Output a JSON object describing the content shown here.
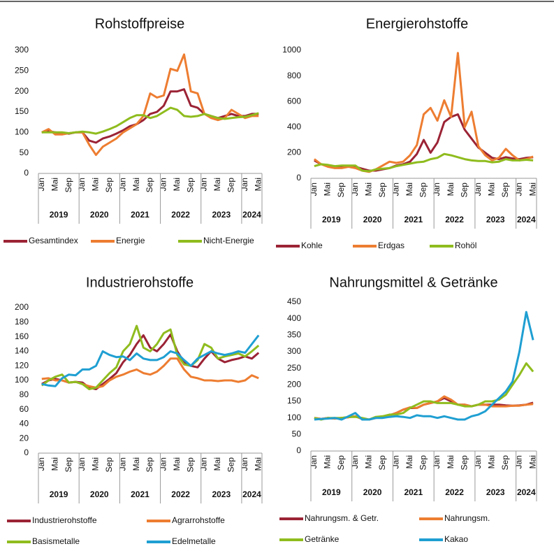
{
  "chart_data": [
    {
      "type": "line",
      "title": "Rohstoffpreise",
      "categories": [
        "Jan",
        null,
        "Mai",
        null,
        "Sep",
        null,
        "Jan",
        null,
        "Mai",
        null,
        "Sep",
        null,
        "Jan",
        null,
        "Mai",
        null,
        "Sep",
        null,
        "Jan",
        null,
        "Mai",
        null,
        "Sep",
        null,
        "Jan",
        null,
        "Mai",
        null,
        "Sep",
        null,
        "Jan",
        null,
        "Mai"
      ],
      "years": [
        "2019",
        "2020",
        "2021",
        "2022",
        "2023",
        "2024"
      ],
      "ylim": [
        0,
        300
      ],
      "yticks": [
        0,
        50,
        100,
        150,
        200,
        250,
        300
      ],
      "series": [
        {
          "name": "Gesamtindex",
          "color": "#9b2335",
          "values": [
            100,
            103,
            100,
            98,
            97,
            100,
            100,
            80,
            75,
            85,
            90,
            97,
            105,
            115,
            120,
            130,
            145,
            150,
            165,
            200,
            200,
            205,
            165,
            160,
            145,
            140,
            135,
            140,
            145,
            140,
            140,
            145,
            145
          ]
        },
        {
          "name": "Energie",
          "color": "#ed7d31",
          "values": [
            100,
            108,
            95,
            95,
            98,
            100,
            100,
            70,
            45,
            65,
            75,
            85,
            100,
            110,
            120,
            140,
            195,
            185,
            190,
            255,
            250,
            290,
            200,
            195,
            145,
            135,
            130,
            135,
            155,
            145,
            135,
            140,
            140
          ]
        },
        {
          "name": "Nicht-Energie",
          "color": "#8fbc1e",
          "values": [
            100,
            100,
            100,
            100,
            98,
            100,
            102,
            100,
            97,
            102,
            108,
            115,
            125,
            135,
            142,
            142,
            135,
            140,
            150,
            160,
            155,
            140,
            138,
            140,
            145,
            140,
            135,
            133,
            135,
            137,
            138,
            142,
            147
          ]
        }
      ]
    },
    {
      "type": "line",
      "title": "Energierohstoffe",
      "categories": [
        "Jan",
        null,
        "Mai",
        null,
        "Sep",
        null,
        "Jan",
        null,
        "Mai",
        null,
        "Sep",
        null,
        "Jan",
        null,
        "Mai",
        null,
        "Sep",
        null,
        "Jan",
        null,
        "Mai",
        null,
        "Sep",
        null,
        "Jan",
        null,
        "Mai",
        null,
        "Sep",
        null,
        "Jan",
        null,
        "Mai"
      ],
      "years": [
        "2019",
        "2020",
        "2021",
        "2022",
        "2023",
        "2024"
      ],
      "ylim": [
        0,
        1000
      ],
      "yticks": [
        0,
        200,
        400,
        600,
        800,
        1000
      ],
      "series": [
        {
          "name": "Kohle",
          "color": "#9b2335",
          "values": [
            140,
            110,
            100,
            85,
            85,
            95,
            90,
            75,
            60,
            60,
            70,
            80,
            100,
            110,
            130,
            190,
            300,
            200,
            280,
            440,
            480,
            500,
            380,
            310,
            240,
            200,
            160,
            150,
            165,
            155,
            150,
            160,
            165
          ]
        },
        {
          "name": "Erdgas",
          "color": "#ed7d31",
          "values": [
            150,
            110,
            90,
            80,
            80,
            90,
            80,
            60,
            50,
            70,
            100,
            130,
            120,
            130,
            180,
            260,
            500,
            550,
            450,
            610,
            480,
            980,
            400,
            520,
            250,
            180,
            140,
            160,
            230,
            180,
            140,
            150,
            170
          ]
        },
        {
          "name": "Rohöl",
          "color": "#8fbc1e",
          "values": [
            95,
            110,
            105,
            95,
            100,
            100,
            100,
            60,
            55,
            70,
            75,
            80,
            95,
            105,
            115,
            125,
            130,
            150,
            160,
            190,
            180,
            165,
            150,
            140,
            135,
            135,
            125,
            130,
            150,
            140,
            140,
            145,
            140
          ]
        }
      ]
    },
    {
      "type": "line",
      "title": "Industrierohstoffe",
      "categories": [
        "Jan",
        null,
        "Mai",
        null,
        "Sep",
        null,
        "Jan",
        null,
        "Mai",
        null,
        "Sep",
        null,
        "Jan",
        null,
        "Mai",
        null,
        "Sep",
        null,
        "Jan",
        null,
        "Mai",
        null,
        "Sep",
        null,
        "Jan",
        null,
        "Mai",
        null,
        "Sep",
        null,
        "Jan",
        null,
        "Mai"
      ],
      "years": [
        "2019",
        "2020",
        "2021",
        "2022",
        "2023",
        "2024"
      ],
      "ylim": [
        0,
        200
      ],
      "yticks": [
        0,
        20,
        40,
        60,
        80,
        100,
        120,
        140,
        160,
        180,
        200
      ],
      "series": [
        {
          "name": "Industrierohstoffe",
          "color": "#9b2335",
          "values": [
            95,
            100,
            102,
            100,
            97,
            98,
            97,
            90,
            88,
            95,
            102,
            110,
            125,
            135,
            150,
            162,
            145,
            140,
            150,
            163,
            140,
            125,
            120,
            118,
            130,
            140,
            130,
            125,
            128,
            130,
            133,
            130,
            138
          ]
        },
        {
          "name": "Agrarrohstoffe",
          "color": "#ed7d31",
          "values": [
            102,
            103,
            100,
            100,
            97,
            98,
            95,
            92,
            90,
            92,
            100,
            105,
            108,
            112,
            115,
            110,
            108,
            112,
            120,
            130,
            130,
            115,
            105,
            103,
            100,
            100,
            99,
            100,
            100,
            98,
            100,
            107,
            103
          ]
        },
        {
          "name": "Basismetalle",
          "color": "#8fbc1e",
          "values": [
            93,
            100,
            105,
            108,
            97,
            98,
            95,
            88,
            90,
            100,
            110,
            118,
            140,
            150,
            175,
            145,
            140,
            150,
            165,
            170,
            135,
            122,
            120,
            128,
            150,
            145,
            130,
            133,
            135,
            137,
            133,
            140,
            148
          ]
        },
        {
          "name": "Edelmetalle",
          "color": "#1f9fd2",
          "values": [
            95,
            93,
            92,
            103,
            108,
            107,
            115,
            115,
            120,
            140,
            135,
            132,
            133,
            128,
            137,
            130,
            128,
            128,
            132,
            140,
            137,
            128,
            120,
            130,
            135,
            140,
            137,
            135,
            137,
            140,
            138,
            150,
            162
          ]
        }
      ]
    },
    {
      "type": "line",
      "title": "Nahrungsmittel & Getränke",
      "categories": [
        "Jan",
        null,
        "Mai",
        null,
        "Sep",
        null,
        "Jan",
        null,
        "Mai",
        null,
        "Sep",
        null,
        "Jan",
        null,
        "Mai",
        null,
        "Sep",
        null,
        "Jan",
        null,
        "Mai",
        null,
        "Sep",
        null,
        "Jan",
        null,
        "Mai",
        null,
        "Sep",
        null,
        "Jan",
        null,
        "Mai"
      ],
      "years": [
        "2019",
        "2020",
        "2021",
        "2022",
        "2023",
        "2024"
      ],
      "ylim": [
        0,
        450
      ],
      "yticks": [
        0,
        50,
        100,
        150,
        200,
        250,
        300,
        350,
        400,
        450
      ],
      "series": [
        {
          "name": "Nahrungsm. & Getr.",
          "color": "#9b2335",
          "values": [
            100,
            97,
            100,
            98,
            100,
            102,
            105,
            97,
            95,
            100,
            103,
            108,
            115,
            125,
            130,
            130,
            140,
            145,
            150,
            160,
            150,
            140,
            140,
            135,
            140,
            140,
            140,
            140,
            138,
            137,
            138,
            140,
            146
          ]
        },
        {
          "name": "Nahrungsm.",
          "color": "#ed7d31",
          "values": [
            100,
            97,
            100,
            98,
            100,
            102,
            105,
            97,
            95,
            100,
            103,
            108,
            115,
            125,
            132,
            130,
            140,
            145,
            150,
            165,
            155,
            140,
            140,
            135,
            140,
            140,
            135,
            135,
            135,
            137,
            137,
            140,
            142
          ]
        },
        {
          "name": "Getränke",
          "color": "#8fbc1e",
          "values": [
            100,
            95,
            100,
            100,
            100,
            103,
            103,
            100,
            95,
            103,
            105,
            110,
            110,
            115,
            130,
            140,
            150,
            150,
            145,
            145,
            145,
            140,
            135,
            135,
            140,
            150,
            150,
            155,
            170,
            200,
            230,
            265,
            240
          ]
        },
        {
          "name": "Kakao",
          "color": "#1f9fd2",
          "values": [
            95,
            97,
            98,
            100,
            95,
            105,
            115,
            95,
            95,
            100,
            100,
            103,
            105,
            103,
            100,
            108,
            105,
            105,
            100,
            105,
            100,
            95,
            95,
            105,
            110,
            120,
            140,
            160,
            180,
            210,
            300,
            420,
            335
          ]
        }
      ]
    }
  ]
}
